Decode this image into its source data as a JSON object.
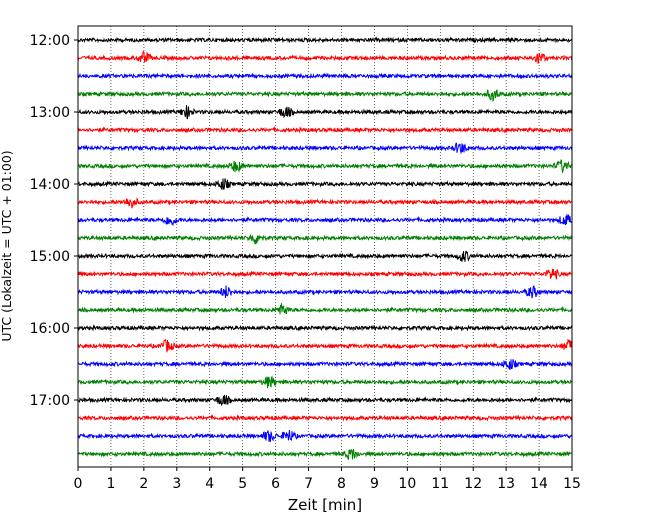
{
  "chart_data": {
    "type": "line",
    "title": "",
    "xlabel": "Zeit  [min]",
    "ylabel": "UTC (Lokalzeit = UTC + 01:00)",
    "xlim": [
      0,
      15
    ],
    "x_ticks": [
      "0",
      "1",
      "2",
      "3",
      "4",
      "5",
      "6",
      "7",
      "8",
      "9",
      "10",
      "11",
      "12",
      "13",
      "14",
      "15"
    ],
    "y_ticks": [
      "12:00",
      "13:00",
      "14:00",
      "15:00",
      "16:00",
      "17:00"
    ],
    "grid": "vertical dotted lines at each minute",
    "colors": [
      "#000000",
      "#ff0000",
      "#0000ff",
      "#008000"
    ],
    "rows": [
      {
        "start": "12:00",
        "color": "#000000",
        "events": []
      },
      {
        "start": "12:15",
        "color": "#ff0000",
        "events": [
          2.0,
          14.0
        ]
      },
      {
        "start": "12:30",
        "color": "#0000ff",
        "events": []
      },
      {
        "start": "12:45",
        "color": "#008000",
        "events": [
          12.6
        ]
      },
      {
        "start": "13:00",
        "color": "#000000",
        "events": [
          6.3,
          3.3
        ]
      },
      {
        "start": "13:15",
        "color": "#ff0000",
        "events": []
      },
      {
        "start": "13:30",
        "color": "#0000ff",
        "events": [
          11.6
        ]
      },
      {
        "start": "13:45",
        "color": "#008000",
        "events": [
          4.8,
          14.7
        ]
      },
      {
        "start": "14:00",
        "color": "#000000",
        "events": [
          4.4
        ]
      },
      {
        "start": "14:15",
        "color": "#ff0000",
        "events": [
          1.6
        ]
      },
      {
        "start": "14:30",
        "color": "#0000ff",
        "events": [
          2.8,
          14.8
        ]
      },
      {
        "start": "14:45",
        "color": "#008000",
        "events": [
          5.4
        ]
      },
      {
        "start": "15:00",
        "color": "#000000",
        "events": [
          11.7
        ]
      },
      {
        "start": "15:15",
        "color": "#ff0000",
        "events": [
          14.4
        ]
      },
      {
        "start": "15:30",
        "color": "#0000ff",
        "events": [
          4.5,
          13.8
        ]
      },
      {
        "start": "15:45",
        "color": "#008000",
        "events": [
          6.2
        ]
      },
      {
        "start": "16:00",
        "color": "#000000",
        "events": []
      },
      {
        "start": "16:15",
        "color": "#ff0000",
        "events": [
          2.7,
          14.9
        ]
      },
      {
        "start": "16:30",
        "color": "#0000ff",
        "events": [
          13.1
        ]
      },
      {
        "start": "16:45",
        "color": "#008000",
        "events": [
          5.8
        ]
      },
      {
        "start": "17:00",
        "color": "#000000",
        "events": [
          4.4
        ]
      },
      {
        "start": "17:15",
        "color": "#ff0000",
        "events": []
      },
      {
        "start": "17:30",
        "color": "#0000ff",
        "events": [
          5.8,
          6.4
        ]
      },
      {
        "start": "17:45",
        "color": "#008000",
        "events": [
          8.3
        ]
      }
    ]
  }
}
